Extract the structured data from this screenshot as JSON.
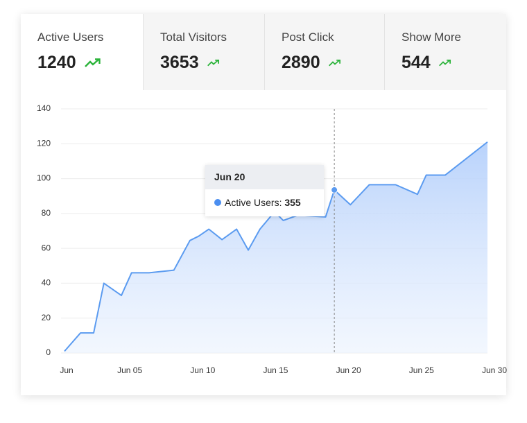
{
  "tabs": [
    {
      "label": "Active Users",
      "value": 1240
    },
    {
      "label": "Total Visitors",
      "value": 3653
    },
    {
      "label": "Post Click",
      "value": 2890
    },
    {
      "label": "Show More",
      "value": 544
    }
  ],
  "chart_data": {
    "type": "area",
    "color": "#5b9bf0",
    "grid": true,
    "x": [
      1,
      2.1,
      3,
      3.7,
      4.9,
      5.6,
      6.8,
      8.5,
      9.6,
      10.2,
      10.9,
      11.8,
      12.8,
      13.6,
      14.4,
      15.4,
      16,
      17,
      18.9,
      19.5,
      20.6,
      21.9,
      23.7,
      25.2,
      25.8,
      27.1,
      30
    ],
    "values": [
      1,
      11.5,
      11.5,
      40,
      33,
      46,
      46,
      47.5,
      64.5,
      67,
      71,
      65,
      71,
      59,
      71,
      81,
      76,
      79,
      78,
      93.5,
      85,
      96.5,
      96.5,
      91,
      102,
      102,
      121
    ],
    "xlim": [
      1,
      30
    ],
    "xticks": [
      {
        "value": 1,
        "label": "Jun"
      },
      {
        "value": 5,
        "label": "Jun 05"
      },
      {
        "value": 10,
        "label": "Jun 10"
      },
      {
        "value": 15,
        "label": "Jun 15"
      },
      {
        "value": 20,
        "label": "Jun 20"
      },
      {
        "value": 25,
        "label": "Jun 25"
      },
      {
        "value": 30,
        "label": "Jun 30"
      }
    ],
    "ylim": [
      0,
      140
    ],
    "yticks": [
      0,
      20,
      40,
      60,
      80,
      100,
      120,
      140
    ]
  },
  "tooltip": {
    "title": "Jun 20",
    "label": "Active Users:",
    "value": 355
  }
}
